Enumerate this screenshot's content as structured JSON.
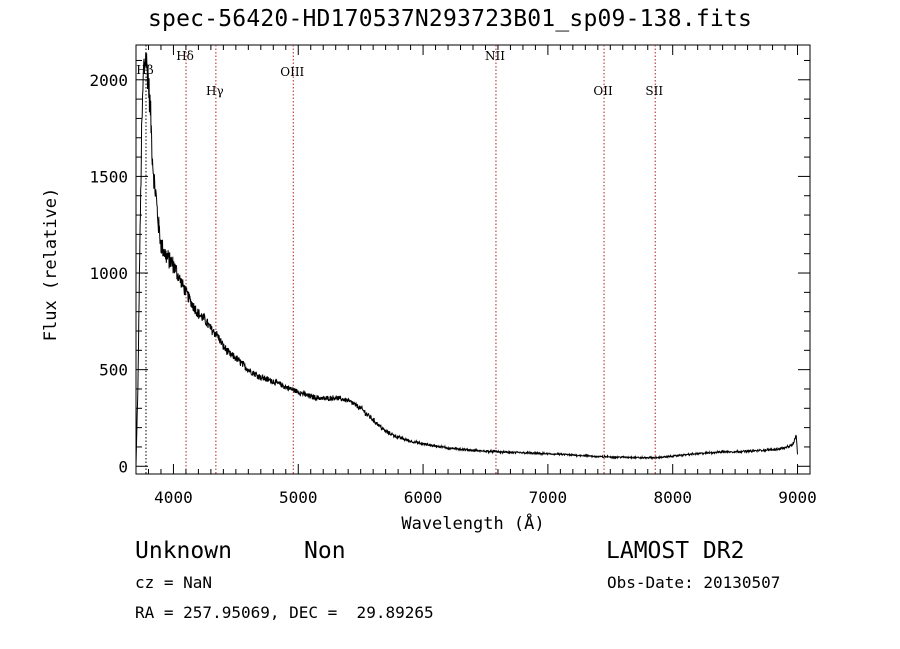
{
  "title": "spec-56420-HD170537N293723B01_sp09-138.fits",
  "object": {
    "class": "Unknown",
    "subclass": "Non"
  },
  "survey": "LAMOST DR2",
  "cz": "cz = NaN",
  "obs_date": "Obs-Date: 20130507",
  "radec": "RA = 257.95069, DEC =  29.89265",
  "chart_data": {
    "type": "line",
    "title": "spec-56420-HD170537N293723B01_sp09-138.fits",
    "xlabel": "Wavelength (Å)",
    "ylabel": "Flux (relative)",
    "xlim": [
      3700,
      9100
    ],
    "ylim": [
      -40,
      2180
    ],
    "xticks": [
      4000,
      5000,
      6000,
      7000,
      8000,
      9000
    ],
    "yticks": [
      0,
      500,
      1000,
      1500,
      2000
    ],
    "grid": false,
    "series": [
      {
        "x": [
          3700,
          3715,
          3730,
          3745,
          3760,
          3775,
          3790,
          3800,
          3815,
          3830,
          3845,
          3860,
          3880,
          3900,
          3925,
          3950,
          3975,
          4000,
          4050,
          4100,
          4150,
          4200,
          4250,
          4300,
          4350,
          4400,
          4450,
          4500,
          4550,
          4600,
          4650,
          4700,
          4800,
          4900,
          5000,
          5100,
          5200,
          5300,
          5400,
          5500,
          5600,
          5700,
          5800,
          5900,
          6000,
          6100,
          6200,
          6300,
          6400,
          6500,
          6600,
          6700,
          6800,
          6900,
          7000,
          7100,
          7200,
          7300,
          7400,
          7500,
          7600,
          7700,
          7800,
          7900,
          8000,
          8100,
          8200,
          8300,
          8400,
          8500,
          8600,
          8700,
          8800,
          8900,
          8960,
          8990,
          9000
        ],
        "y": [
          0,
          400,
          1100,
          1700,
          2050,
          2120,
          2060,
          1980,
          1850,
          1620,
          1480,
          1400,
          1250,
          1150,
          1110,
          1080,
          1060,
          1040,
          970,
          900,
          840,
          790,
          760,
          710,
          680,
          620,
          580,
          560,
          530,
          500,
          480,
          460,
          440,
          410,
          385,
          360,
          350,
          355,
          340,
          300,
          240,
          180,
          150,
          130,
          115,
          105,
          95,
          88,
          82,
          78,
          75,
          72,
          70,
          67,
          64,
          62,
          58,
          55,
          50,
          48,
          47,
          45,
          44,
          46,
          52,
          60,
          65,
          70,
          75,
          75,
          78,
          82,
          86,
          95,
          110,
          160,
          60
        ]
      }
    ],
    "spectral_lines": [
      {
        "label": "Hβ",
        "wavelength": 3780,
        "color": "#000000"
      },
      {
        "label": "Hδ",
        "wavelength": 4101,
        "color": "#b22222"
      },
      {
        "label": "Hγ",
        "wavelength": 4340,
        "color": "#b22222"
      },
      {
        "label": "OIII",
        "wavelength": 4960,
        "color": "#b22222"
      },
      {
        "label": "NII",
        "wavelength": 6584,
        "color": "#b22222"
      },
      {
        "label": "OII",
        "wavelength": 7450,
        "color": "#b22222"
      },
      {
        "label": "SII",
        "wavelength": 7860,
        "color": "#b22222"
      }
    ]
  }
}
